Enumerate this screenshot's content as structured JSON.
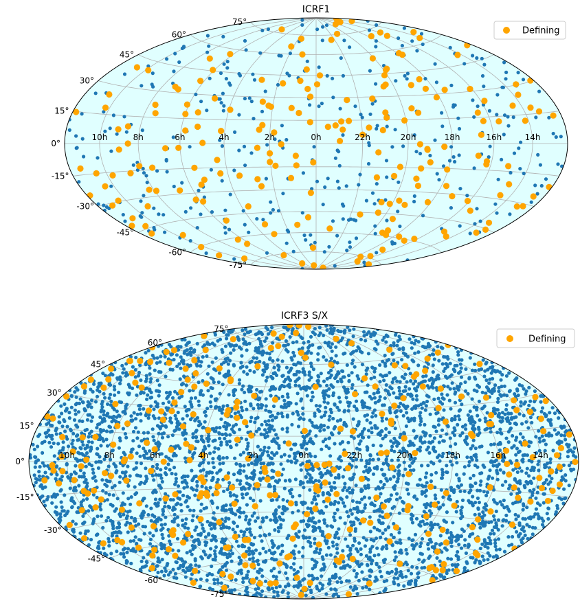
{
  "chart_data": [
    {
      "type": "scatter",
      "projection": "aitoff-hammer",
      "title": "ICRF1",
      "legend": {
        "label": "Defining",
        "position": "top-right"
      },
      "ra_tick_labels": [
        "10h",
        "8h",
        "6h",
        "4h",
        "2h",
        "0h",
        "22h",
        "20h",
        "18h",
        "16h",
        "14h"
      ],
      "dec_tick_labels": [
        "75°",
        "60°",
        "45°",
        "30°",
        "15°",
        "0°",
        "-15°",
        "-30°",
        "-45°",
        "-60°",
        "-75°"
      ],
      "colors": {
        "background": "#e0ffff",
        "defining": "#ffa500",
        "other": "#1f77b4",
        "grid": "#b0b0b0"
      },
      "grid": true,
      "series": [
        {
          "name": "Defining",
          "count_approx": 212
        },
        {
          "count_approx": 400
        }
      ]
    },
    {
      "type": "scatter",
      "projection": "aitoff-hammer",
      "title": "ICRF3 S/X",
      "legend": {
        "label": "Defining",
        "position": "top-right"
      },
      "ra_tick_labels": [
        "10h",
        "8h",
        "6h",
        "4h",
        "2h",
        "0h",
        "22h",
        "20h",
        "18h",
        "16h",
        "14h"
      ],
      "dec_tick_labels": [
        "75°",
        "60°",
        "45°",
        "30°",
        "15°",
        "0°",
        "-15°",
        "-30°",
        "-45°",
        "-60°",
        "-75°"
      ],
      "colors": {
        "background": "#e0ffff",
        "defining": "#ffa500",
        "other": "#1f77b4",
        "grid": "#b0b0b0"
      },
      "grid": true,
      "series": [
        {
          "name": "Defining",
          "count_approx": 303
        },
        {
          "count_approx": 4536
        }
      ]
    }
  ]
}
